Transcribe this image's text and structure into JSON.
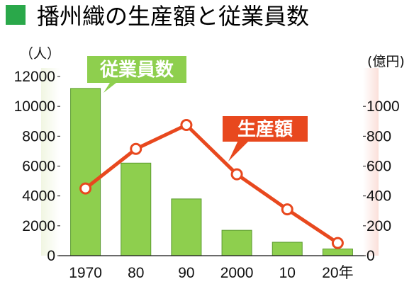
{
  "title": "播州織の生産額と従業員数",
  "colors": {
    "title_square": "#2aa84a",
    "bar_fill": "#8ecf4e",
    "bar_edge": "#5a9a2f",
    "line": "#e8481e",
    "left_band": "#f1f6e2",
    "right_band": "#fbe0da"
  },
  "chart_data": {
    "type": "bar+line",
    "categories": [
      "1970",
      "80",
      "90",
      "2000",
      "10",
      "20年"
    ],
    "left_axis": {
      "unit": "（人）",
      "ticks": [
        "0",
        "2000",
        "4000",
        "6000",
        "8000",
        "10000",
        "12000"
      ],
      "ylim": [
        0,
        12000
      ]
    },
    "right_axis": {
      "unit": "(億円)",
      "ticks": [
        "0",
        "200",
        "400",
        "600",
        "800",
        "1000"
      ],
      "ylim": [
        0,
        1200
      ]
    },
    "series": [
      {
        "name": "従業員数",
        "type": "bar",
        "axis": "left",
        "values": [
          11200,
          6200,
          3800,
          1700,
          900,
          450
        ]
      },
      {
        "name": "生産額",
        "type": "line",
        "axis": "right",
        "values": [
          450,
          715,
          875,
          545,
          310,
          85
        ]
      }
    ]
  }
}
